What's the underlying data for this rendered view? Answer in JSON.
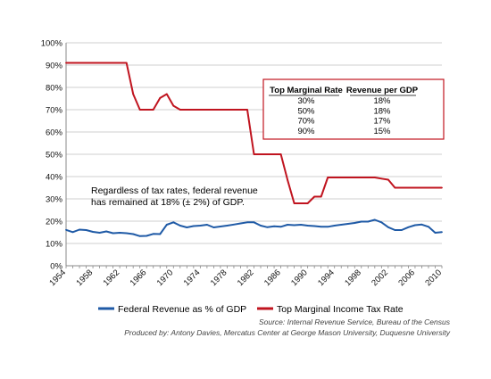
{
  "chart_data": {
    "type": "line",
    "ylim": [
      0,
      100
    ],
    "y_ticks": [
      0,
      10,
      20,
      30,
      40,
      50,
      60,
      70,
      80,
      90,
      100
    ],
    "y_tick_labels": [
      "0%",
      "10%",
      "20%",
      "30%",
      "40%",
      "50%",
      "60%",
      "70%",
      "80%",
      "90%",
      "100%"
    ],
    "xlim": [
      1954,
      2010
    ],
    "x_ticks": [
      1954,
      1958,
      1962,
      1966,
      1970,
      1974,
      1978,
      1982,
      1986,
      1990,
      1994,
      1998,
      2002,
      2006,
      2010
    ],
    "x_tick_labels": [
      "1954",
      "1958",
      "1962",
      "1966",
      "1970",
      "1974",
      "1978",
      "1982",
      "1986",
      "1990",
      "1994",
      "1998",
      "2002",
      "2006",
      "2010"
    ],
    "grid": true,
    "legend_position": "bottom",
    "series": [
      {
        "name": "Federal Revenue as % of GDP",
        "color": "#1f5aa6",
        "points": [
          [
            1954,
            16.1
          ],
          [
            1955,
            15.1
          ],
          [
            1956,
            16.2
          ],
          [
            1957,
            16.0
          ],
          [
            1958,
            15.2
          ],
          [
            1959,
            14.8
          ],
          [
            1960,
            15.4
          ],
          [
            1961,
            14.6
          ],
          [
            1962,
            14.8
          ],
          [
            1963,
            14.6
          ],
          [
            1964,
            14.2
          ],
          [
            1965,
            13.3
          ],
          [
            1966,
            13.4
          ],
          [
            1967,
            14.3
          ],
          [
            1968,
            14.2
          ],
          [
            1969,
            18.4
          ],
          [
            1970,
            19.5
          ],
          [
            1971,
            18.0
          ],
          [
            1972,
            17.2
          ],
          [
            1973,
            17.8
          ],
          [
            1974,
            18.0
          ],
          [
            1975,
            18.4
          ],
          [
            1976,
            17.2
          ],
          [
            1977,
            17.6
          ],
          [
            1978,
            18.0
          ],
          [
            1979,
            18.5
          ],
          [
            1980,
            19.0
          ],
          [
            1981,
            19.5
          ],
          [
            1982,
            19.5
          ],
          [
            1983,
            18.0
          ],
          [
            1984,
            17.3
          ],
          [
            1985,
            17.7
          ],
          [
            1986,
            17.5
          ],
          [
            1987,
            18.4
          ],
          [
            1988,
            18.2
          ],
          [
            1989,
            18.4
          ],
          [
            1990,
            18.0
          ],
          [
            1991,
            17.8
          ],
          [
            1992,
            17.5
          ],
          [
            1993,
            17.5
          ],
          [
            1994,
            18.0
          ],
          [
            1995,
            18.4
          ],
          [
            1996,
            18.8
          ],
          [
            1997,
            19.2
          ],
          [
            1998,
            19.8
          ],
          [
            1999,
            19.8
          ],
          [
            2000,
            20.6
          ],
          [
            2001,
            19.5
          ],
          [
            2002,
            17.3
          ],
          [
            2003,
            16.0
          ],
          [
            2004,
            16.0
          ],
          [
            2005,
            17.3
          ],
          [
            2006,
            18.2
          ],
          [
            2007,
            18.5
          ],
          [
            2008,
            17.5
          ],
          [
            2009,
            14.8
          ],
          [
            2010,
            15.1
          ]
        ]
      },
      {
        "name": "Top Marginal Income Tax Rate",
        "color": "#c0141f",
        "points": [
          [
            1954,
            91
          ],
          [
            1963,
            91
          ],
          [
            1964,
            77
          ],
          [
            1965,
            70
          ],
          [
            1967,
            70
          ],
          [
            1968,
            75.25
          ],
          [
            1969,
            77
          ],
          [
            1970,
            71.75
          ],
          [
            1971,
            70
          ],
          [
            1981,
            70
          ],
          [
            1982,
            50
          ],
          [
            1986,
            50
          ],
          [
            1987,
            38.5
          ],
          [
            1988,
            28
          ],
          [
            1990,
            28
          ],
          [
            1991,
            31
          ],
          [
            1992,
            31
          ],
          [
            1993,
            39.6
          ],
          [
            2000,
            39.6
          ],
          [
            2001,
            39.1
          ],
          [
            2002,
            38.6
          ],
          [
            2003,
            35
          ],
          [
            2010,
            35
          ]
        ]
      }
    ],
    "annotation_lines": [
      "Regardless of tax rates, federal revenue",
      "has remained at 18% (± 2%) of GDP."
    ],
    "inset_table": {
      "headers": [
        "Top Marginal Rate",
        "Revenue per GDP"
      ],
      "rows": [
        [
          "30%",
          "18%"
        ],
        [
          "50%",
          "18%"
        ],
        [
          "70%",
          "17%"
        ],
        [
          "90%",
          "15%"
        ]
      ],
      "border_color": "#c0141f"
    },
    "source_lines": [
      "Source: Internal Revenue Service, Bureau of the Census",
      "Produced by: Antony Davies, Mercatus Center at George Mason University, Duquesne University"
    ]
  }
}
